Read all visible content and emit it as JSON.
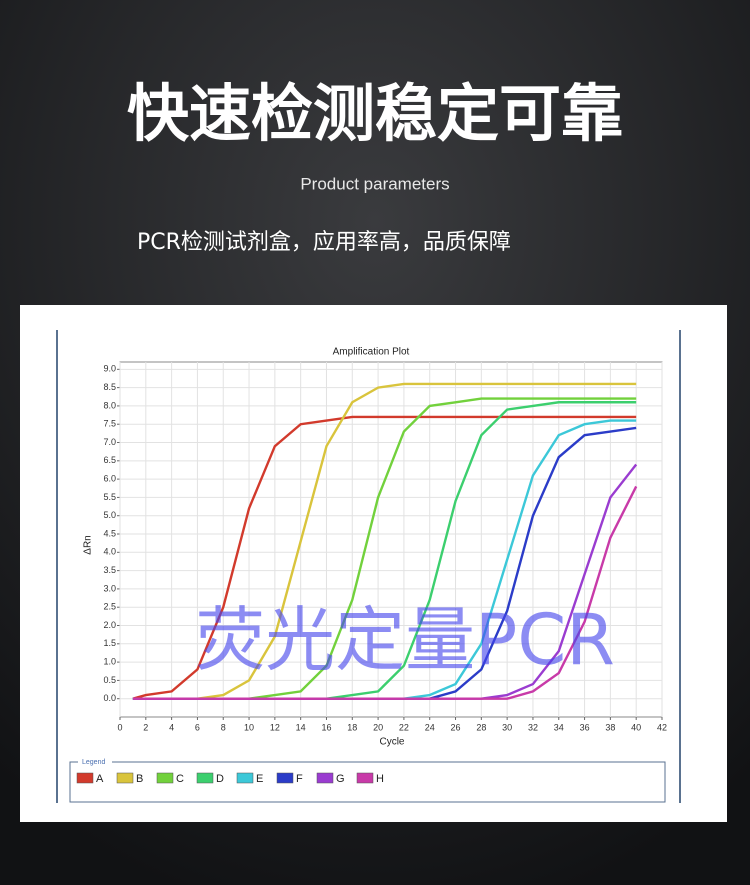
{
  "header": {
    "title": "快速检测稳定可靠",
    "subtitle": "Product parameters",
    "tagline": "PCR检测试剂盒，应用率高，品质保障"
  },
  "watermark": "荧光定量PCR",
  "chart_data": {
    "type": "line",
    "title": "Amplification Plot",
    "x_label": "Cycle",
    "y_label": "ΔRn",
    "legend_title": "Legend",
    "legend": "bottom",
    "grid": true,
    "x": [
      1,
      2,
      4,
      6,
      8,
      10,
      12,
      14,
      16,
      18,
      20,
      22,
      24,
      26,
      28,
      30,
      32,
      34,
      36,
      38,
      40
    ],
    "xlim": [
      0,
      42
    ],
    "xticks": [
      0,
      2,
      4,
      6,
      8,
      10,
      12,
      14,
      16,
      18,
      20,
      22,
      24,
      26,
      28,
      30,
      32,
      34,
      36,
      38,
      40,
      42
    ],
    "ylim": [
      -0.5,
      9.2
    ],
    "yticks": [
      {
        "value": 0,
        "label": "0.0"
      },
      {
        "value": 0.5,
        "label": "0.5"
      },
      {
        "value": 1,
        "label": "1.0"
      },
      {
        "value": 1.5,
        "label": "1.5"
      },
      {
        "value": 2,
        "label": "2.0"
      },
      {
        "value": 2.5,
        "label": "2.5"
      },
      {
        "value": 3,
        "label": "3.0"
      },
      {
        "value": 3.5,
        "label": "3.5"
      },
      {
        "value": 4,
        "label": "4.0"
      },
      {
        "value": 4.5,
        "label": "4.5"
      },
      {
        "value": 5,
        "label": "5.0"
      },
      {
        "value": 5.5,
        "label": "5.5"
      },
      {
        "value": 6,
        "label": "6.0"
      },
      {
        "value": 6.5,
        "label": "6.5"
      },
      {
        "value": 7,
        "label": "7.0"
      },
      {
        "value": 7.5,
        "label": "7.5"
      },
      {
        "value": 8,
        "label": "8.0"
      },
      {
        "value": 8.5,
        "label": "8.5"
      },
      {
        "value": 9,
        "label": "9.0"
      }
    ],
    "series": [
      {
        "name": "A",
        "color": "#d23a2c",
        "values": [
          0,
          0.1,
          0.2,
          0.8,
          2.5,
          5.2,
          6.9,
          7.5,
          7.6,
          7.7,
          7.7,
          7.7,
          7.7,
          7.7,
          7.7,
          7.7,
          7.7,
          7.7,
          7.7,
          7.7,
          7.7
        ]
      },
      {
        "name": "B",
        "color": "#d9c43c",
        "values": [
          0,
          0,
          0,
          0,
          0.1,
          0.5,
          1.7,
          4.3,
          6.9,
          8.1,
          8.5,
          8.6,
          8.6,
          8.6,
          8.6,
          8.6,
          8.6,
          8.6,
          8.6,
          8.6,
          8.6
        ]
      },
      {
        "name": "C",
        "color": "#72d13c",
        "values": [
          0,
          0,
          0,
          0,
          0,
          0,
          0.1,
          0.2,
          0.9,
          2.7,
          5.5,
          7.3,
          8.0,
          8.1,
          8.2,
          8.2,
          8.2,
          8.2,
          8.2,
          8.2,
          8.2
        ]
      },
      {
        "name": "D",
        "color": "#3ccf6e",
        "values": [
          0,
          0,
          0,
          0,
          0,
          0,
          0,
          0,
          0,
          0.1,
          0.2,
          0.9,
          2.7,
          5.4,
          7.2,
          7.9,
          8.0,
          8.1,
          8.1,
          8.1,
          8.1
        ]
      },
      {
        "name": "E",
        "color": "#3cc8d8",
        "values": [
          0,
          0,
          0,
          0,
          0,
          0,
          0,
          0,
          0,
          0,
          0,
          0,
          0.1,
          0.4,
          1.5,
          3.8,
          6.1,
          7.2,
          7.5,
          7.6,
          7.6
        ]
      },
      {
        "name": "F",
        "color": "#2b3cc8",
        "values": [
          0,
          0,
          0,
          0,
          0,
          0,
          0,
          0,
          0,
          0,
          0,
          0,
          0,
          0.2,
          0.8,
          2.4,
          5.0,
          6.6,
          7.2,
          7.3,
          7.4
        ]
      },
      {
        "name": "G",
        "color": "#9a3cd0",
        "values": [
          0,
          0,
          0,
          0,
          0,
          0,
          0,
          0,
          0,
          0,
          0,
          0,
          0,
          0,
          0,
          0.1,
          0.4,
          1.3,
          3.4,
          5.5,
          6.4
        ]
      },
      {
        "name": "H",
        "color": "#c83aa8",
        "values": [
          0,
          0,
          0,
          0,
          0,
          0,
          0,
          0,
          0,
          0,
          0,
          0,
          0,
          0,
          0,
          0,
          0.2,
          0.7,
          2.1,
          4.4,
          5.8
        ]
      }
    ]
  }
}
